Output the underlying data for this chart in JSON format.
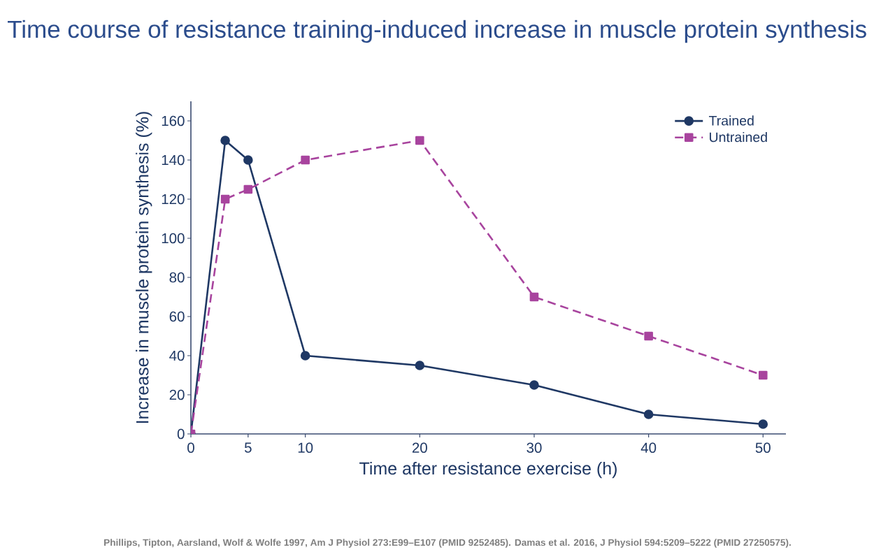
{
  "chart_data": {
    "type": "line",
    "title": "Time course of resistance training-induced increase in muscle protein synthesis",
    "xlabel": "Time after resistance exercise (h)",
    "ylabel": "Increase in muscle protein synthesis (%)",
    "annotations": [
      "Phillips, Tipton, Aarsland, Wolf & Wolfe 1997, Am J Physiol 273:E99–E107 (PMID 9252485). Damas et al. 2016, J Physiol 594:5209–5222 (PMID 27250575)."
    ],
    "x": [
      0,
      3,
      5,
      10,
      20,
      30,
      40,
      50
    ],
    "series": [
      {
        "name": "Trained",
        "color": "#1f3864",
        "values": [
          0,
          150,
          140,
          40,
          35,
          25,
          10,
          5
        ],
        "marker": "circle",
        "line_style": "solid"
      },
      {
        "name": "Untrained",
        "color": "#a8449e",
        "values": [
          0,
          120,
          125,
          140,
          150,
          70,
          50,
          30
        ],
        "marker": "square",
        "line_style": "dashed"
      }
    ],
    "xlim": [
      0,
      52
    ],
    "ylim": [
      0,
      170
    ],
    "xticks": [
      0,
      5,
      10,
      20,
      30,
      40,
      50
    ],
    "yticks": [
      0,
      20,
      40,
      60,
      80,
      100,
      120,
      140,
      160
    ],
    "legend": "top right"
  }
}
